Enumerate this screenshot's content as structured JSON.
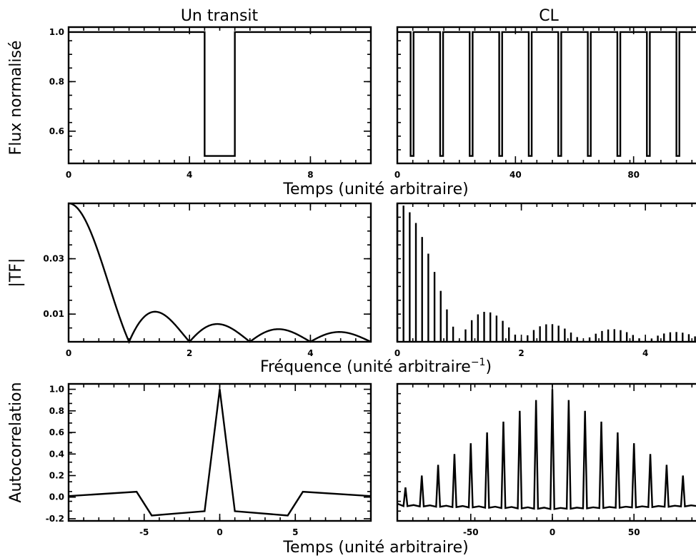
{
  "figure": {
    "titles": {
      "left": "Un transit",
      "right": "CL"
    },
    "xlabels": {
      "row1": "Temps (unité arbitraire)",
      "row2_main": "Fréquence (unité arbitraire",
      "row2_sup": "−1",
      "row2_close": ")",
      "row3": "Temps (unité arbitraire)"
    },
    "ylabels": {
      "row1": "Flux normalisé",
      "row2": "|TF|",
      "row3": "Autocorrelation"
    }
  },
  "chart_data": [
    {
      "id": "flux_single",
      "type": "line",
      "title": "Un transit",
      "xlabel": "Temps (unité arbitraire)",
      "ylabel": "Flux normalisé",
      "xlim": [
        0,
        10
      ],
      "ylim": [
        0.47,
        1.02
      ],
      "xticks": [
        0,
        4,
        8
      ],
      "yticks": [
        0.6,
        0.8,
        1.0
      ],
      "ytick_labels": [
        "0.6",
        "0.8",
        "1.0"
      ],
      "series": [
        {
          "x": [
            0,
            4.5,
            4.5,
            5.5,
            5.5,
            10
          ],
          "y": [
            1.0,
            1.0,
            0.5,
            0.5,
            1.0,
            1.0
          ]
        }
      ]
    },
    {
      "id": "flux_periodic",
      "type": "line",
      "title": "CL",
      "xlim": [
        0,
        105
      ],
      "ylim": [
        0.47,
        1.02
      ],
      "xticks": [
        0,
        40,
        80
      ],
      "xtick_labels": [
        "0",
        "40",
        "80"
      ],
      "transit": {
        "period": 10,
        "first_start": 4.5,
        "duration": 1.0,
        "depth_flux": 0.5,
        "baseline": 1.0
      }
    },
    {
      "id": "ft_single",
      "type": "line",
      "ylabel": "|TF|",
      "xlim": [
        0,
        5
      ],
      "ylim": [
        0,
        0.05
      ],
      "xticks": [
        0,
        2,
        4
      ],
      "yticks": [
        0.01,
        0.03
      ],
      "ytick_labels": [
        "0.01",
        "0.03"
      ],
      "function": "0.05*|sinc(f)|",
      "peak": 0.05
    },
    {
      "id": "ft_periodic",
      "type": "bar",
      "xlim": [
        0,
        5
      ],
      "ylim": [
        0,
        0.05
      ],
      "xticks": [
        0,
        2,
        4
      ],
      "bar_spacing": 0.1,
      "envelope": "0.05*|sinc(f)|"
    },
    {
      "id": "acf_single",
      "type": "line",
      "ylabel": "Autocorrelation",
      "xlabel": "Temps (unité arbitraire)",
      "xlim": [
        -10,
        10
      ],
      "ylim": [
        -0.22,
        1.05
      ],
      "xticks": [
        -5,
        0,
        5
      ],
      "yticks": [
        -0.2,
        0.0,
        0.2,
        0.4,
        0.6,
        0.8,
        1.0
      ],
      "ytick_labels": [
        "-0.2",
        "0.0",
        "0.2",
        "0.4",
        "0.6",
        "0.8",
        "1.0"
      ],
      "series": [
        {
          "x": [
            -10,
            -5.5,
            -4.5,
            -1,
            0,
            1,
            4.5,
            5.5,
            10
          ],
          "y": [
            0.01,
            0.05,
            -0.17,
            -0.13,
            1.0,
            -0.13,
            -0.17,
            0.05,
            0.01
          ]
        }
      ]
    },
    {
      "id": "acf_periodic",
      "type": "line",
      "xlim": [
        -95,
        95
      ],
      "ylim": [
        -0.22,
        1.05
      ],
      "xticks": [
        -50,
        0,
        50
      ],
      "peak_lags": [
        -90,
        -80,
        -70,
        -60,
        -50,
        -40,
        -30,
        -20,
        -10,
        0,
        10,
        20,
        30,
        40,
        50,
        60,
        70,
        80,
        90
      ],
      "peak_values": [
        0.09,
        0.2,
        0.3,
        0.4,
        0.5,
        0.6,
        0.7,
        0.8,
        0.9,
        1.0,
        0.9,
        0.8,
        0.7,
        0.6,
        0.5,
        0.4,
        0.3,
        0.2,
        0.09
      ],
      "baseline": -0.08
    }
  ]
}
